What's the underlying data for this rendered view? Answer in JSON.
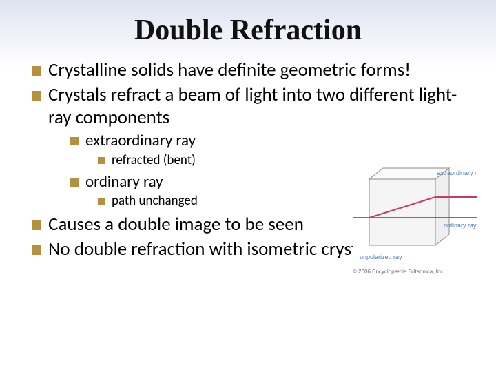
{
  "title": {
    "text": "Double Refraction",
    "fontsize": 42
  },
  "colors": {
    "bullet_square": "#b6903c",
    "text": "#000000",
    "title": "#111111",
    "bg_top": "#dde2f0",
    "bg_bottom": "#ffffff",
    "diagram_cube_stroke": "#8c8c8c",
    "diagram_bg": "#f5f5f5",
    "ray_ordinary": "#4a7bc2",
    "ray_extra": "#c83a6a",
    "ray_unpolarized": "#5a8a5a",
    "diagram_label_color": "#4a7bc2"
  },
  "bullets": {
    "l1_fontsize": 27,
    "l2_fontsize": 23,
    "l3_fontsize": 19,
    "sq_l1": 14,
    "sq_l2": 12,
    "sq_l3": 10,
    "items": [
      {
        "level": 1,
        "text": "Crystalline solids have definite geometric forms!"
      },
      {
        "level": 1,
        "text": "Crystals refract a beam of light into two different light-ray components"
      },
      {
        "level": 2,
        "text": "extraordinary ray"
      },
      {
        "level": 3,
        "text": "refracted (bent)"
      },
      {
        "level": 2,
        "text": "ordinary ray"
      },
      {
        "level": 3,
        "text": "path unchanged"
      },
      {
        "level": 1,
        "text": "Causes a double image to be seen"
      },
      {
        "level": 1,
        "text": "No double refraction with isometric crystals"
      }
    ]
  },
  "diagram": {
    "labels": {
      "extraordinary": "extraordinary ray",
      "ordinary": "ordinary ray",
      "unpolarized": "unpolarized ray"
    },
    "label_fontsize": 9,
    "credit": "© 2006 Encyclopædia Britannica, Inc.",
    "credit_fontsize": 8
  }
}
